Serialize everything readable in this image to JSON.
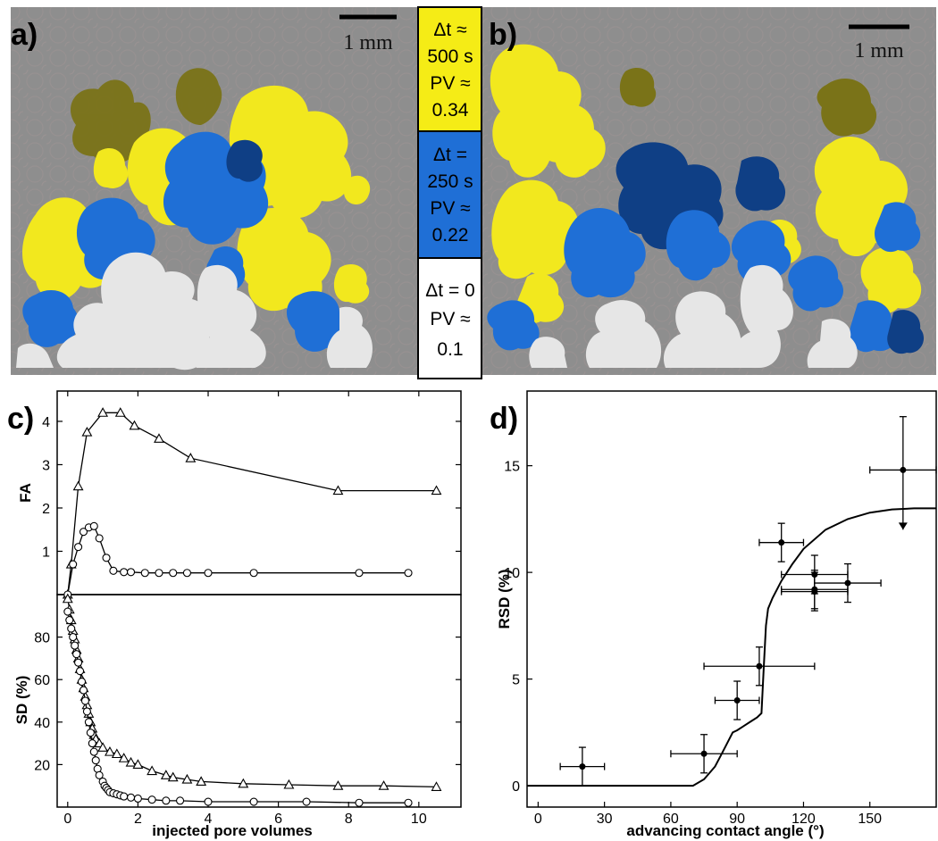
{
  "panels": {
    "a": {
      "label": "a)",
      "scale_bar": "1 mm"
    },
    "b": {
      "label": "b)",
      "scale_bar": "1 mm"
    }
  },
  "legend": [
    {
      "lines": [
        "Δt ≈",
        "500 s",
        "PV ≈",
        "0.34"
      ],
      "color": "#f5ec16"
    },
    {
      "lines": [
        "Δt =",
        "250 s",
        "PV ≈",
        "0.22"
      ],
      "color": "#1f6fd6"
    },
    {
      "lines": [
        "Δt = 0",
        "PV ≈",
        "0.1"
      ],
      "color": "#ffffff"
    }
  ],
  "colors": {
    "yellow": "#f2e81e",
    "dark_yellow": "#7a7318",
    "blue": "#1f6fd6",
    "dark_blue": "#0f3f85",
    "white": "#e6e6e6",
    "background": "#8e8e8e"
  },
  "chart_data": [
    {
      "panel": "c)",
      "type": "line",
      "subplot": "top",
      "ylabel": "FA",
      "xlim": [
        -0.3,
        11.2
      ],
      "ylim": [
        0,
        4.7
      ],
      "yticks": [
        1,
        2,
        3,
        4
      ],
      "series": [
        {
          "marker": "triangle",
          "x": [
            0,
            0.1,
            0.3,
            0.55,
            1.0,
            1.5,
            1.9,
            2.6,
            3.5,
            7.7,
            10.5
          ],
          "y": [
            0,
            0.7,
            2.5,
            3.75,
            4.2,
            4.2,
            3.9,
            3.6,
            3.15,
            2.4,
            2.4
          ]
        },
        {
          "marker": "circle",
          "x": [
            0,
            0.15,
            0.3,
            0.45,
            0.6,
            0.75,
            0.9,
            1.1,
            1.3,
            1.6,
            1.8,
            2.2,
            2.6,
            3.0,
            3.4,
            4.0,
            5.3,
            8.3,
            9.7
          ],
          "y": [
            0,
            0.7,
            1.1,
            1.45,
            1.55,
            1.58,
            1.3,
            0.85,
            0.55,
            0.52,
            0.52,
            0.5,
            0.5,
            0.5,
            0.5,
            0.5,
            0.5,
            0.5,
            0.5
          ]
        }
      ]
    },
    {
      "panel": "c)",
      "type": "line",
      "subplot": "bottom",
      "xlabel": "injected pore volumes",
      "ylabel": "SD (%)",
      "xlim": [
        -0.3,
        11.2
      ],
      "ylim": [
        0,
        100
      ],
      "xticks": [
        0,
        2,
        4,
        6,
        8,
        10
      ],
      "yticks": [
        20,
        40,
        60,
        80
      ],
      "series": [
        {
          "marker": "triangle",
          "x": [
            0,
            0.05,
            0.1,
            0.15,
            0.2,
            0.25,
            0.3,
            0.35,
            0.4,
            0.45,
            0.5,
            0.55,
            0.6,
            0.65,
            0.7,
            0.75,
            0.8,
            0.9,
            1.0,
            1.2,
            1.4,
            1.6,
            1.8,
            2.0,
            2.4,
            2.8,
            3.0,
            3.4,
            3.8,
            5.0,
            6.3,
            7.7,
            9.0,
            10.5
          ],
          "y": [
            98,
            93,
            88,
            83,
            79,
            74,
            70,
            65,
            60,
            56,
            52,
            48,
            44,
            40,
            37,
            34,
            32,
            30,
            28,
            26,
            25,
            23,
            21,
            20,
            17,
            15,
            14,
            13,
            12,
            11,
            10.5,
            10,
            10,
            9.5
          ]
        },
        {
          "marker": "circle",
          "x": [
            0,
            0.05,
            0.1,
            0.15,
            0.2,
            0.25,
            0.3,
            0.35,
            0.4,
            0.45,
            0.5,
            0.55,
            0.6,
            0.65,
            0.7,
            0.75,
            0.8,
            0.85,
            0.9,
            1.0,
            1.05,
            1.1,
            1.15,
            1.2,
            1.3,
            1.4,
            1.5,
            1.6,
            1.8,
            2.0,
            2.4,
            2.8,
            3.2,
            4.0,
            5.3,
            6.8,
            8.3,
            9.7
          ],
          "y": [
            92,
            88,
            84,
            80,
            76,
            72,
            68,
            64,
            59,
            55,
            50,
            45,
            40,
            35,
            30,
            26,
            22,
            18,
            15,
            12,
            10,
            9,
            8,
            7,
            6.5,
            6,
            5.5,
            5,
            4.5,
            4,
            3.5,
            3,
            3,
            2.5,
            2.5,
            2.5,
            2,
            2
          ]
        }
      ]
    },
    {
      "panel": "d)",
      "type": "scatter",
      "xlabel": "advancing contact angle (°)",
      "ylabel": "RSD (%)",
      "xlim": [
        -5,
        180
      ],
      "ylim": [
        -1,
        18.5
      ],
      "xticks": [
        0,
        30,
        60,
        90,
        120,
        150
      ],
      "yticks": [
        0,
        5,
        10,
        15
      ],
      "points": [
        {
          "x": 20,
          "y": 0.9,
          "xerr": 10,
          "yerr": 0.9
        },
        {
          "x": 75,
          "y": 1.5,
          "xerr": 15,
          "yerr": 0.9
        },
        {
          "x": 90,
          "y": 4.0,
          "xerr": 10,
          "yerr": 0.9
        },
        {
          "x": 100,
          "y": 5.6,
          "xerr": 25,
          "yerr": 0.9
        },
        {
          "x": 110,
          "y": 11.4,
          "xerr": 10,
          "yerr": 0.9
        },
        {
          "x": 125,
          "y": 9.9,
          "xerr": 15,
          "yerr": 0.9
        },
        {
          "x": 125,
          "y": 9.2,
          "xerr": 15,
          "yerr": 0.9
        },
        {
          "x": 125,
          "y": 9.1,
          "xerr": 15,
          "yerr": 0.9
        },
        {
          "x": 140,
          "y": 9.5,
          "xerr": 15,
          "yerr": 0.9
        },
        {
          "x": 165,
          "y": 14.8,
          "xerr": 15,
          "yerr_up": 2.5,
          "yerr_down": 2.8,
          "arrow_down": true
        }
      ],
      "curve": {
        "x": [
          -5,
          70,
          75,
          80,
          83,
          86,
          88,
          90,
          93,
          96,
          99,
          101,
          102,
          103,
          104,
          106,
          108,
          110,
          115,
          120,
          130,
          140,
          150,
          160,
          170,
          180
        ],
        "y": [
          0,
          0,
          0.3,
          0.9,
          1.5,
          2.1,
          2.5,
          2.6,
          2.8,
          3.0,
          3.2,
          3.4,
          5.5,
          7.5,
          8.3,
          8.8,
          9.2,
          9.6,
          10.4,
          11.1,
          12.0,
          12.5,
          12.8,
          12.95,
          13.0,
          13.0
        ]
      }
    }
  ]
}
